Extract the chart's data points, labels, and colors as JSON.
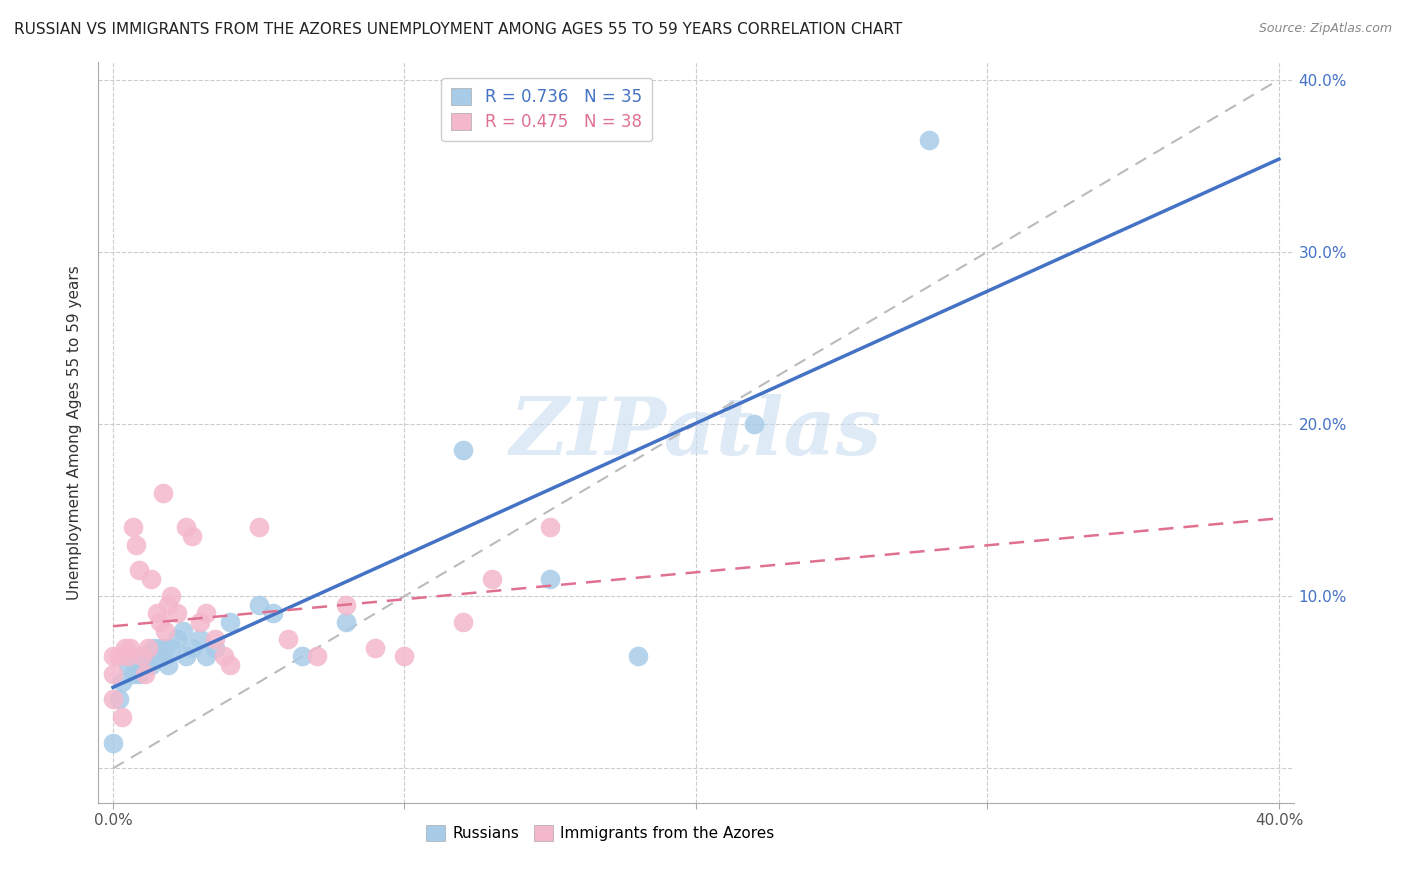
{
  "title": "RUSSIAN VS IMMIGRANTS FROM THE AZORES UNEMPLOYMENT AMONG AGES 55 TO 59 YEARS CORRELATION CHART",
  "source": "Source: ZipAtlas.com",
  "ylabel": "Unemployment Among Ages 55 to 59 years",
  "xlim": [
    -0.005,
    0.405
  ],
  "ylim": [
    -0.02,
    0.41
  ],
  "xticks": [
    0.0,
    0.1,
    0.2,
    0.3,
    0.4
  ],
  "yticks": [
    0.0,
    0.1,
    0.2,
    0.3,
    0.4
  ],
  "grid_color": "#cccccc",
  "russian_color": "#a8cce8",
  "azores_color": "#f4b8cc",
  "russian_edge_color": "#7aaad0",
  "azores_edge_color": "#e890aa",
  "russian_line_color": "#4472c4",
  "azores_line_color": "#e07090",
  "diag_line_color": "#cccccc",
  "russian_R": 0.736,
  "russian_N": 35,
  "azores_R": 0.475,
  "azores_N": 38,
  "russian_x": [
    0.0,
    0.002,
    0.003,
    0.005,
    0.007,
    0.008,
    0.009,
    0.01,
    0.011,
    0.012,
    0.013,
    0.014,
    0.015,
    0.016,
    0.017,
    0.018,
    0.019,
    0.02,
    0.022,
    0.024,
    0.025,
    0.027,
    0.03,
    0.032,
    0.035,
    0.04,
    0.05,
    0.055,
    0.065,
    0.08,
    0.12,
    0.15,
    0.18,
    0.22,
    0.28
  ],
  "russian_y": [
    0.015,
    0.04,
    0.05,
    0.06,
    0.055,
    0.06,
    0.055,
    0.065,
    0.06,
    0.065,
    0.06,
    0.07,
    0.065,
    0.07,
    0.065,
    0.07,
    0.06,
    0.07,
    0.075,
    0.08,
    0.065,
    0.07,
    0.075,
    0.065,
    0.07,
    0.085,
    0.095,
    0.09,
    0.065,
    0.085,
    0.185,
    0.11,
    0.065,
    0.2,
    0.365
  ],
  "azores_x": [
    0.0,
    0.0,
    0.0,
    0.002,
    0.003,
    0.004,
    0.005,
    0.006,
    0.007,
    0.008,
    0.009,
    0.01,
    0.011,
    0.012,
    0.013,
    0.015,
    0.016,
    0.017,
    0.018,
    0.019,
    0.02,
    0.022,
    0.025,
    0.027,
    0.03,
    0.032,
    0.035,
    0.038,
    0.04,
    0.05,
    0.06,
    0.07,
    0.08,
    0.09,
    0.1,
    0.12,
    0.13,
    0.15
  ],
  "azores_y": [
    0.055,
    0.065,
    0.04,
    0.065,
    0.03,
    0.07,
    0.065,
    0.07,
    0.14,
    0.13,
    0.115,
    0.065,
    0.055,
    0.07,
    0.11,
    0.09,
    0.085,
    0.16,
    0.08,
    0.095,
    0.1,
    0.09,
    0.14,
    0.135,
    0.085,
    0.09,
    0.075,
    0.065,
    0.06,
    0.14,
    0.075,
    0.065,
    0.095,
    0.07,
    0.065,
    0.085,
    0.11,
    0.14
  ],
  "background_color": "#ffffff",
  "title_fontsize": 11,
  "axis_label_fontsize": 11,
  "tick_fontsize": 11,
  "ytick_color": "#4472c4",
  "xtick_color": "#555555",
  "legend_fontsize": 12
}
